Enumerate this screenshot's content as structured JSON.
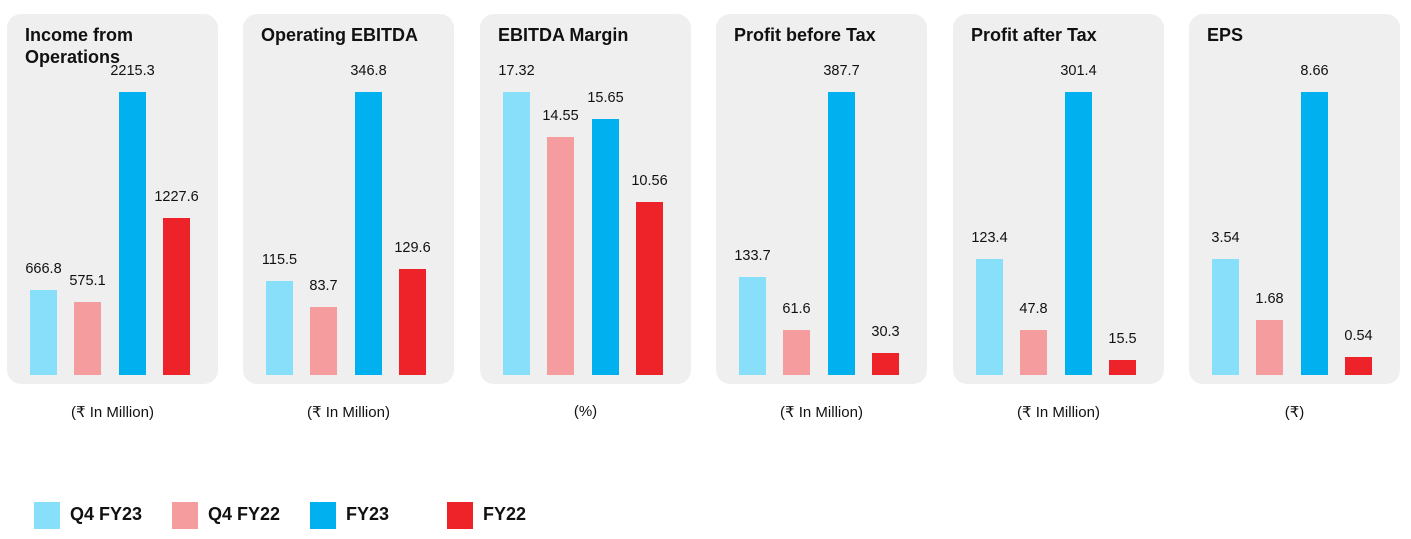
{
  "series": [
    {
      "name": "Q4 FY23",
      "color": "#87dff9"
    },
    {
      "name": "Q4 FY22",
      "color": "#f59c9f"
    },
    {
      "name": "FY23",
      "color": "#00b0ef"
    },
    {
      "name": "FY22",
      "color": "#ee2229"
    }
  ],
  "chart_data": [
    {
      "type": "bar",
      "title": "Income from Operations",
      "unit": "(₹ In Million)",
      "categories": [
        "Q4 FY23",
        "Q4 FY22",
        "FY23",
        "FY22"
      ],
      "values": [
        666.8,
        575.1,
        2215.3,
        1227.6
      ],
      "labels": [
        "666.8",
        "575.1",
        "2215.3",
        "1227.6"
      ]
    },
    {
      "type": "bar",
      "title": "Operating EBITDA",
      "unit": "(₹ In Million)",
      "categories": [
        "Q4 FY23",
        "Q4 FY22",
        "FY23",
        "FY22"
      ],
      "values": [
        115.5,
        83.7,
        346.8,
        129.6
      ],
      "labels": [
        "115.5",
        "83.7",
        "346.8",
        "129.6"
      ]
    },
    {
      "type": "bar",
      "title": "EBITDA Margin",
      "unit": "(%)",
      "categories": [
        "Q4 FY23",
        "Q4 FY22",
        "FY23",
        "FY22"
      ],
      "values": [
        17.32,
        14.55,
        15.65,
        10.56
      ],
      "labels": [
        "17.32",
        "14.55",
        "15.65",
        "10.56"
      ]
    },
    {
      "type": "bar",
      "title": "Profit before Tax",
      "unit": "(₹ In Million)",
      "categories": [
        "Q4 FY23",
        "Q4 FY22",
        "FY23",
        "FY22"
      ],
      "values": [
        133.7,
        61.6,
        387.7,
        30.3
      ],
      "labels": [
        "133.7",
        "61.6",
        "387.7",
        "30.3"
      ]
    },
    {
      "type": "bar",
      "title": "Profit after Tax",
      "unit": "(₹ In Million)",
      "categories": [
        "Q4 FY23",
        "Q4 FY22",
        "FY23",
        "FY22"
      ],
      "values": [
        123.4,
        47.8,
        301.4,
        15.5
      ],
      "labels": [
        "123.4",
        "47.8",
        "301.4",
        "15.5"
      ]
    },
    {
      "type": "bar",
      "title": "EPS",
      "unit": "(₹)",
      "categories": [
        "Q4 FY23",
        "Q4 FY22",
        "FY23",
        "FY22"
      ],
      "values": [
        3.54,
        1.68,
        8.66,
        0.54
      ],
      "labels": [
        "3.54",
        "1.68",
        "8.66",
        "0.54"
      ]
    }
  ]
}
